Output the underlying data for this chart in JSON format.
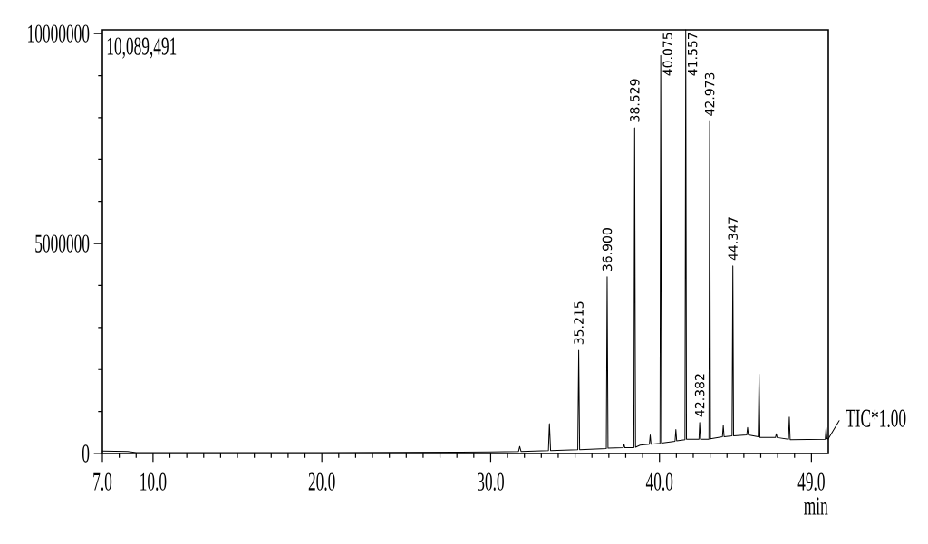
{
  "chart_data": {
    "type": "line",
    "xlabel": "min",
    "marker": "none",
    "annotations": [
      "10,089,491",
      {
        "text": "35.215",
        "x": 35.215,
        "y": 2460000
      },
      {
        "text": "36.900",
        "x": 36.9,
        "y": 4210000
      },
      {
        "text": "38.529",
        "x": 38.529,
        "y": 7760000
      },
      {
        "text": "40.075",
        "x": 40.075,
        "y": 9480000
      },
      {
        "text": "41.557",
        "x": 41.557,
        "y": 10089491
      },
      {
        "text": "42.382",
        "x": 42.382,
        "y": 740000
      },
      {
        "text": "42.973",
        "x": 42.973,
        "y": 7910000
      },
      {
        "text": "44.347",
        "x": 44.347,
        "y": 4470000
      }
    ],
    "xlim": [
      7,
      50
    ],
    "ylim": [
      0,
      10089491
    ],
    "xticks": [
      {
        "value": 7,
        "label": "7.0"
      },
      {
        "value": 8,
        "label": null
      },
      {
        "value": 9,
        "label": null
      },
      {
        "value": 10,
        "label": "10.0"
      },
      {
        "value": 11,
        "label": null
      },
      {
        "value": 12,
        "label": null
      },
      {
        "value": 13,
        "label": null
      },
      {
        "value": 14,
        "label": null
      },
      {
        "value": 15,
        "label": null
      },
      {
        "value": 16,
        "label": null
      },
      {
        "value": 17,
        "label": null
      },
      {
        "value": 18,
        "label": null
      },
      {
        "value": 19,
        "label": null
      },
      {
        "value": 20,
        "label": "20.0"
      },
      {
        "value": 21,
        "label": null
      },
      {
        "value": 22,
        "label": null
      },
      {
        "value": 23,
        "label": null
      },
      {
        "value": 24,
        "label": null
      },
      {
        "value": 25,
        "label": null
      },
      {
        "value": 26,
        "label": null
      },
      {
        "value": 27,
        "label": null
      },
      {
        "value": 28,
        "label": null
      },
      {
        "value": 29,
        "label": null
      },
      {
        "value": 30,
        "label": "30.0"
      },
      {
        "value": 31,
        "label": null
      },
      {
        "value": 32,
        "label": null
      },
      {
        "value": 33,
        "label": null
      },
      {
        "value": 34,
        "label": null
      },
      {
        "value": 35,
        "label": null
      },
      {
        "value": 36,
        "label": null
      },
      {
        "value": 37,
        "label": null
      },
      {
        "value": 38,
        "label": null
      },
      {
        "value": 39,
        "label": null
      },
      {
        "value": 40,
        "label": "40.0"
      },
      {
        "value": 41,
        "label": null
      },
      {
        "value": 42,
        "label": null
      },
      {
        "value": 43,
        "label": null
      },
      {
        "value": 44,
        "label": null
      },
      {
        "value": 45,
        "label": null
      },
      {
        "value": 46,
        "label": null
      },
      {
        "value": 47,
        "label": null
      },
      {
        "value": 48,
        "label": null
      },
      {
        "value": 49,
        "label": "49.0"
      }
    ],
    "yticks": [
      0,
      {
        "value": 1000000,
        "label": null
      },
      {
        "value": 2000000,
        "label": null
      },
      {
        "value": 3000000,
        "label": null
      },
      {
        "value": 4000000,
        "label": null
      },
      5000000,
      {
        "value": 6000000,
        "label": null
      },
      {
        "value": 7000000,
        "label": null
      },
      {
        "value": 8000000,
        "label": null
      },
      {
        "value": 9000000,
        "label": null
      },
      10000000
    ],
    "series": [
      {
        "name": "TIC*1.00",
        "color": "#000000",
        "x": [
          7.0,
          8.5,
          9.0,
          20.0,
          28.0,
          30.0,
          31.65,
          31.72,
          31.8,
          33.42,
          33.48,
          33.55,
          35.16,
          35.215,
          35.27,
          36.85,
          36.9,
          36.95,
          37.85,
          37.9,
          37.95,
          38.48,
          38.529,
          38.58,
          38.85,
          39.4,
          39.45,
          39.5,
          40.03,
          40.075,
          40.12,
          40.92,
          40.97,
          41.02,
          41.51,
          41.557,
          41.6,
          42.34,
          42.382,
          42.43,
          42.93,
          42.973,
          43.02,
          43.73,
          43.78,
          43.83,
          44.3,
          44.347,
          44.39,
          45.17,
          45.22,
          45.27,
          45.85,
          45.9,
          45.95,
          46.87,
          46.92,
          46.97,
          47.64,
          47.69,
          47.74,
          49.82,
          49.87,
          49.92,
          50.0
        ],
        "values": [
          60000,
          50000,
          20000,
          20000,
          30000,
          40000,
          50000,
          170000,
          50000,
          70000,
          710000,
          70000,
          90000,
          2460000,
          90000,
          120000,
          4210000,
          130000,
          140000,
          220000,
          140000,
          140000,
          7760000,
          150000,
          200000,
          220000,
          440000,
          220000,
          240000,
          9480000,
          250000,
          290000,
          570000,
          300000,
          330000,
          10089491,
          340000,
          340000,
          740000,
          340000,
          340000,
          7910000,
          350000,
          400000,
          670000,
          400000,
          420000,
          4470000,
          420000,
          440000,
          620000,
          440000,
          400000,
          1890000,
          380000,
          380000,
          470000,
          380000,
          340000,
          870000,
          330000,
          340000,
          620000,
          350000,
          350000
        ]
      }
    ]
  }
}
